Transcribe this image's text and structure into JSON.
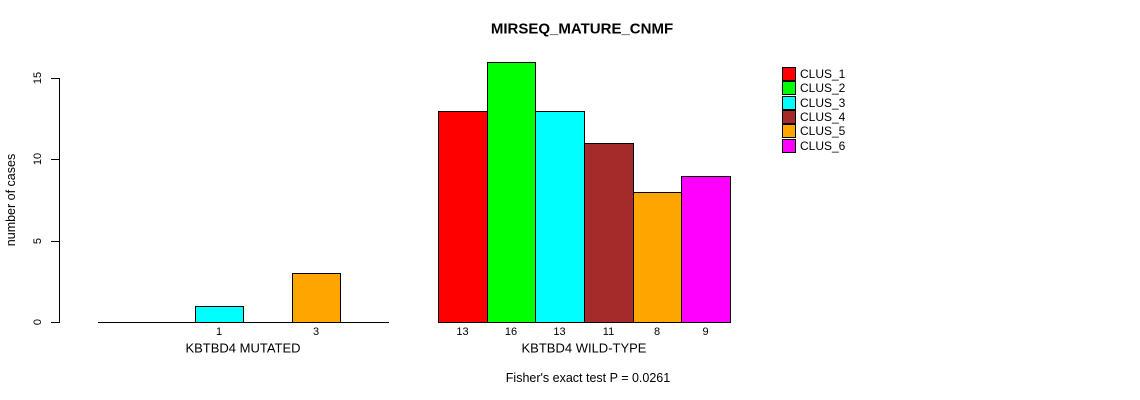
{
  "chart_data": {
    "type": "bar",
    "title": "MIRSEQ_MATURE_CNMF",
    "ylabel": "number of cases",
    "xlabel": "",
    "ylim": [
      0,
      16
    ],
    "yticks": [
      0,
      5,
      10,
      15
    ],
    "grid": false,
    "legend_position": "right",
    "categories": [
      "CLUS_1",
      "CLUS_2",
      "CLUS_3",
      "CLUS_4",
      "CLUS_5",
      "CLUS_6"
    ],
    "cluster_colors": [
      "#FF0000",
      "#00FF00",
      "#00FFFF",
      "#A52A2A",
      "#FFA500",
      "#FF00FF"
    ],
    "groups": [
      {
        "label": "KBTBD4 MUTATED",
        "values": [
          0,
          0,
          1,
          0,
          3,
          0
        ]
      },
      {
        "label": "KBTBD4 WILD-TYPE",
        "values": [
          13,
          16,
          13,
          11,
          8,
          9
        ]
      }
    ],
    "bar_value_labels_shown_for_nonzero_only": true,
    "annotation": "Fisher's exact test P = 0.0261"
  }
}
